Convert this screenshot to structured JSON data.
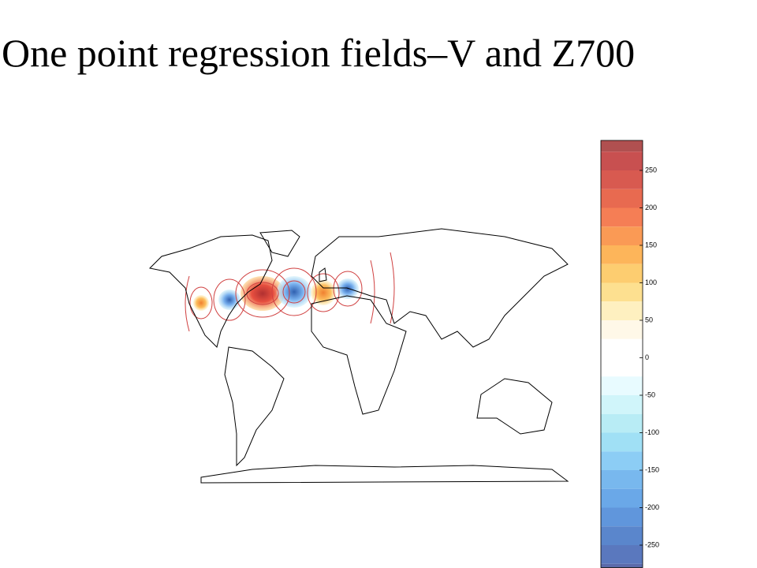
{
  "title": "One point regression fields–V and Z700",
  "colorbar": {
    "clim": [
      -280,
      290
    ],
    "ticks": [
      250,
      200,
      150,
      100,
      50,
      0,
      -50,
      -100,
      -150,
      -200,
      -250
    ],
    "levels": [
      290,
      275,
      250,
      225,
      200,
      175,
      150,
      125,
      100,
      75,
      50,
      25,
      0,
      -25,
      -50,
      -75,
      -100,
      -125,
      -150,
      -175,
      -200,
      -225,
      -250,
      -275,
      -280
    ],
    "colors": [
      "#b05050",
      "#c85050",
      "#d85a50",
      "#e86a50",
      "#f57e55",
      "#fa9a55",
      "#fdb55a",
      "#fdcd70",
      "#fde090",
      "#fef0c0",
      "#fff8e8",
      "#ffffff",
      "#ffffff",
      "#e8fbff",
      "#d0f5fa",
      "#b8ecf5",
      "#a0e0f5",
      "#8ccdf5",
      "#78b8ee",
      "#6aa8e8",
      "#6096dc",
      "#5a86cc",
      "#5a78be",
      "#5a6aaa"
    ]
  }
}
